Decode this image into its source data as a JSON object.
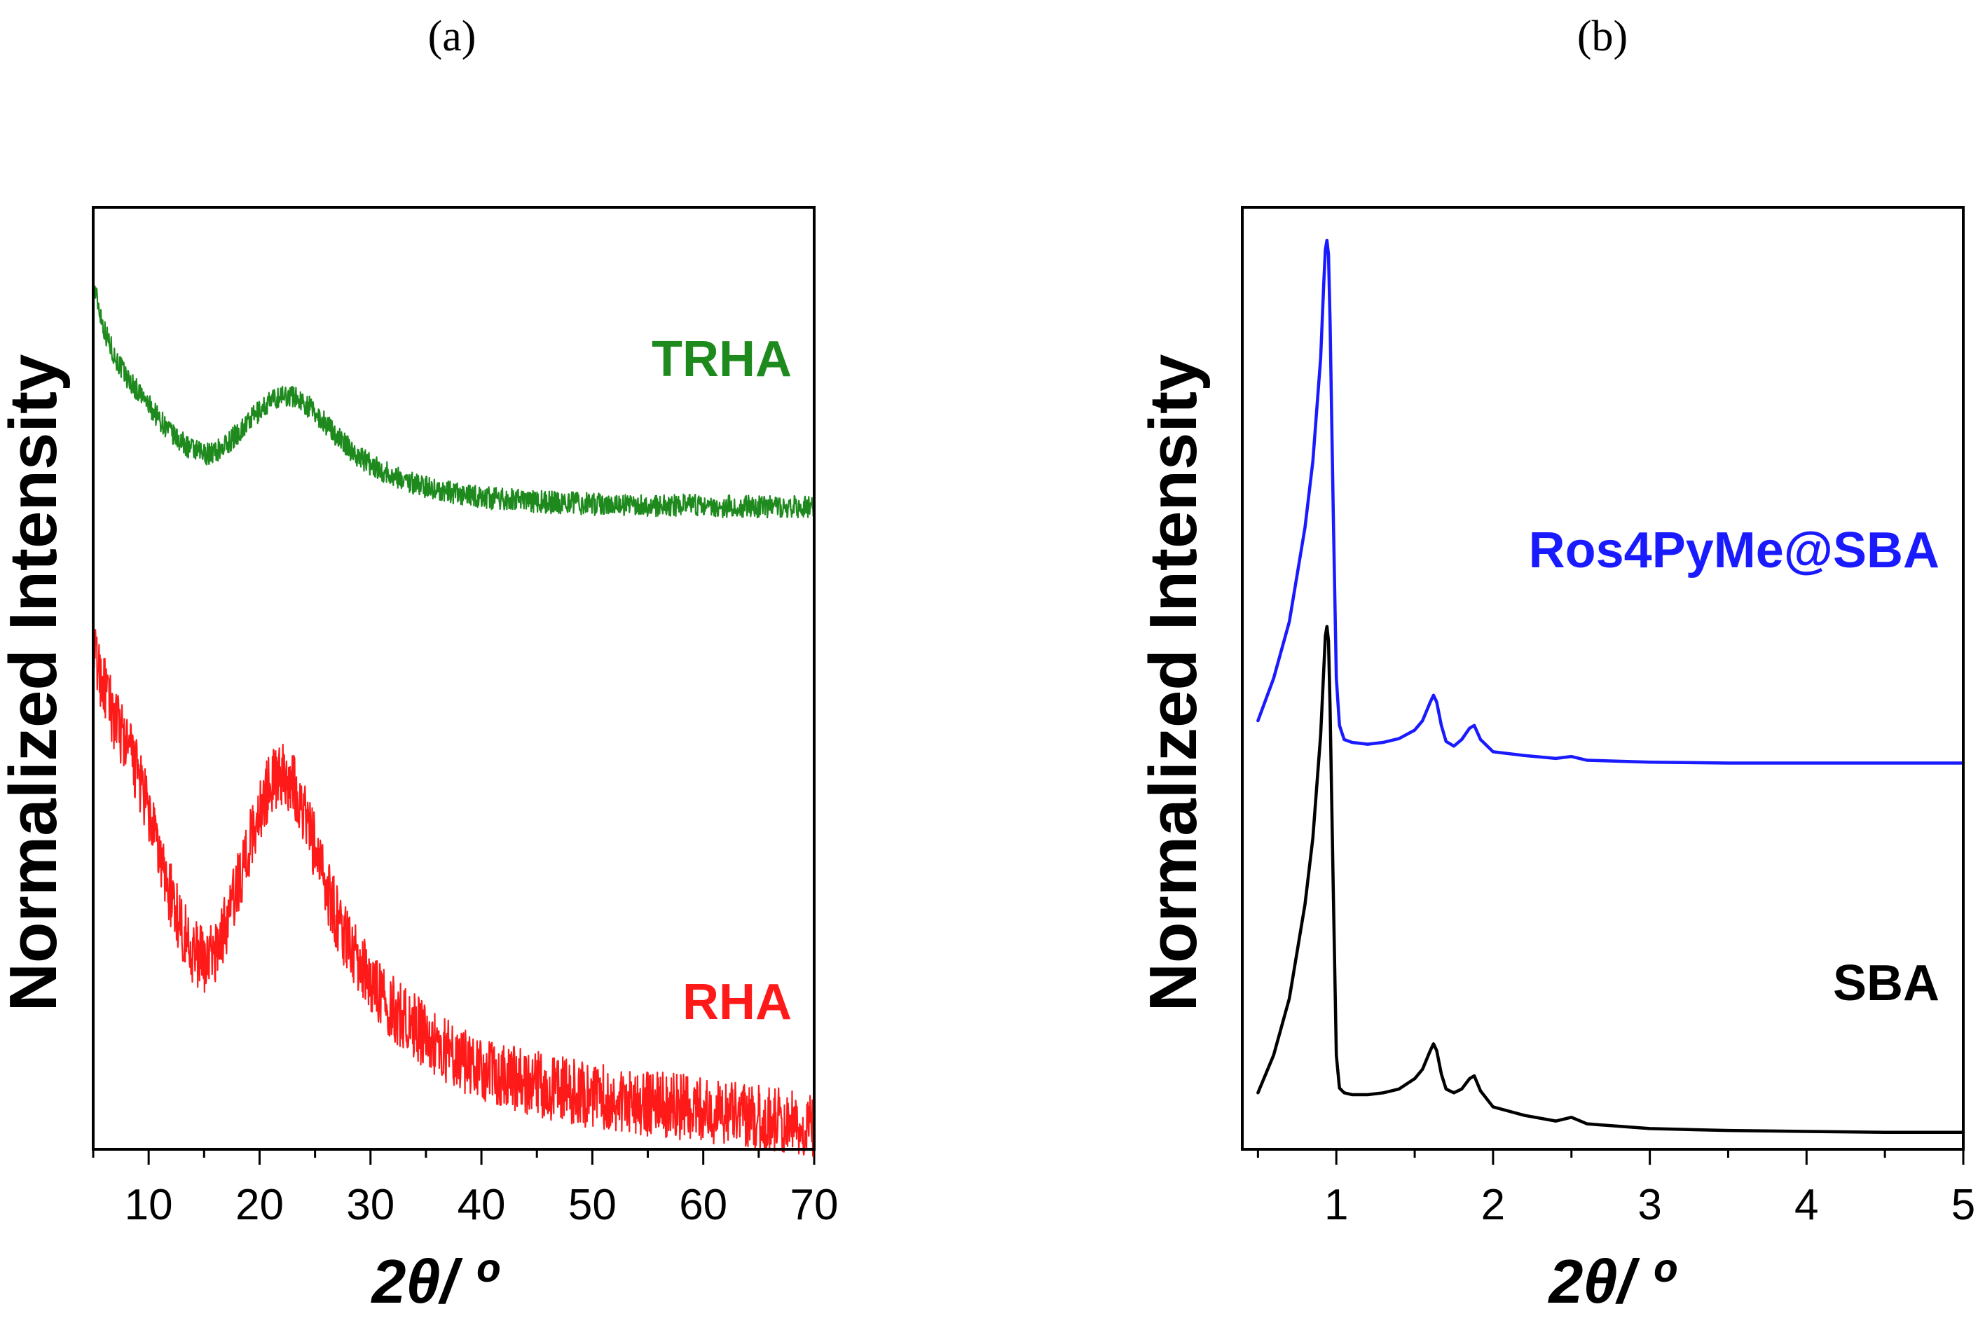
{
  "chart_data": [
    {
      "type": "line",
      "panel_label": "(a)",
      "ylabel": "Normalized Intensity",
      "xlabel": "2θ/ º",
      "xlim": [
        5,
        70
      ],
      "xticks": [
        10,
        20,
        30,
        40,
        50,
        60,
        70
      ],
      "y_ticks_shown": false,
      "series": [
        {
          "name": "TRHA",
          "color": "#1e8a1e",
          "noise": 0.012,
          "x": [
            5,
            6,
            7,
            8,
            9,
            10,
            11,
            12,
            13,
            14,
            15,
            16,
            17,
            18,
            19,
            20,
            21,
            22,
            23,
            24,
            25,
            26,
            27,
            28,
            29,
            30,
            32,
            34,
            36,
            38,
            40,
            43,
            46,
            50,
            55,
            60,
            65,
            70
          ],
          "y": [
            0.92,
            0.87,
            0.84,
            0.82,
            0.805,
            0.79,
            0.775,
            0.76,
            0.75,
            0.742,
            0.738,
            0.74,
            0.748,
            0.76,
            0.772,
            0.784,
            0.794,
            0.8,
            0.8,
            0.793,
            0.782,
            0.77,
            0.757,
            0.745,
            0.735,
            0.727,
            0.715,
            0.707,
            0.7,
            0.695,
            0.692,
            0.689,
            0.687,
            0.685,
            0.684,
            0.683,
            0.682,
            0.682
          ]
        },
        {
          "name": "RHA",
          "color": "#ff1a1a",
          "noise": 0.035,
          "x": [
            5,
            6,
            7,
            8,
            9,
            10,
            11,
            12,
            13,
            14,
            15,
            16,
            17,
            18,
            19,
            20,
            21,
            22,
            23,
            24,
            25,
            26,
            27,
            28,
            29,
            30,
            32,
            34,
            36,
            38,
            40,
            43,
            46,
            50,
            55,
            60,
            65,
            70
          ],
          "y": [
            0.53,
            0.49,
            0.455,
            0.43,
            0.4,
            0.355,
            0.31,
            0.27,
            0.235,
            0.21,
            0.2,
            0.21,
            0.24,
            0.28,
            0.32,
            0.36,
            0.39,
            0.4,
            0.39,
            0.36,
            0.32,
            0.28,
            0.245,
            0.22,
            0.2,
            0.18,
            0.15,
            0.13,
            0.11,
            0.095,
            0.085,
            0.075,
            0.066,
            0.057,
            0.049,
            0.042,
            0.033,
            0.025
          ]
        }
      ]
    },
    {
      "type": "line",
      "panel_label": "(b)",
      "ylabel": "Normalized Intensity",
      "xlabel": "2θ/ º",
      "xlim": [
        0.4,
        5
      ],
      "xticks": [
        1,
        2,
        3,
        4,
        5
      ],
      "y_ticks_shown": false,
      "series": [
        {
          "name": "Ros4PyMe@SBA",
          "color": "#1a1aff",
          "x": [
            0.5,
            0.6,
            0.7,
            0.8,
            0.85,
            0.9,
            0.92,
            0.93,
            0.94,
            0.95,
            0.96,
            0.98,
            1.0,
            1.02,
            1.05,
            1.1,
            1.2,
            1.3,
            1.4,
            1.5,
            1.55,
            1.6,
            1.62,
            1.64,
            1.67,
            1.7,
            1.75,
            1.8,
            1.85,
            1.88,
            1.92,
            2.0,
            2.2,
            2.4,
            2.5,
            2.6,
            3.0,
            3.5,
            4.0,
            4.5,
            5.0
          ],
          "y": [
            0.455,
            0.5,
            0.56,
            0.66,
            0.73,
            0.84,
            0.92,
            0.955,
            0.965,
            0.95,
            0.88,
            0.68,
            0.5,
            0.45,
            0.435,
            0.432,
            0.43,
            0.432,
            0.436,
            0.445,
            0.455,
            0.475,
            0.482,
            0.475,
            0.45,
            0.433,
            0.428,
            0.435,
            0.447,
            0.45,
            0.435,
            0.422,
            0.418,
            0.415,
            0.417,
            0.413,
            0.411,
            0.41,
            0.41,
            0.41,
            0.41
          ]
        },
        {
          "name": "SBA",
          "color": "#000000",
          "x": [
            0.5,
            0.6,
            0.7,
            0.8,
            0.85,
            0.9,
            0.92,
            0.93,
            0.94,
            0.95,
            0.96,
            0.98,
            1.0,
            1.02,
            1.05,
            1.1,
            1.2,
            1.3,
            1.4,
            1.5,
            1.55,
            1.6,
            1.62,
            1.64,
            1.67,
            1.7,
            1.75,
            1.8,
            1.85,
            1.88,
            1.92,
            2.0,
            2.2,
            2.4,
            2.5,
            2.6,
            3.0,
            3.5,
            4.0,
            4.5,
            5.0
          ],
          "y": [
            0.06,
            0.1,
            0.16,
            0.26,
            0.33,
            0.44,
            0.51,
            0.545,
            0.555,
            0.54,
            0.47,
            0.28,
            0.1,
            0.065,
            0.06,
            0.058,
            0.058,
            0.06,
            0.064,
            0.075,
            0.085,
            0.105,
            0.112,
            0.105,
            0.08,
            0.064,
            0.06,
            0.064,
            0.075,
            0.078,
            0.062,
            0.045,
            0.036,
            0.03,
            0.034,
            0.027,
            0.022,
            0.02,
            0.019,
            0.018,
            0.018
          ]
        }
      ]
    }
  ]
}
